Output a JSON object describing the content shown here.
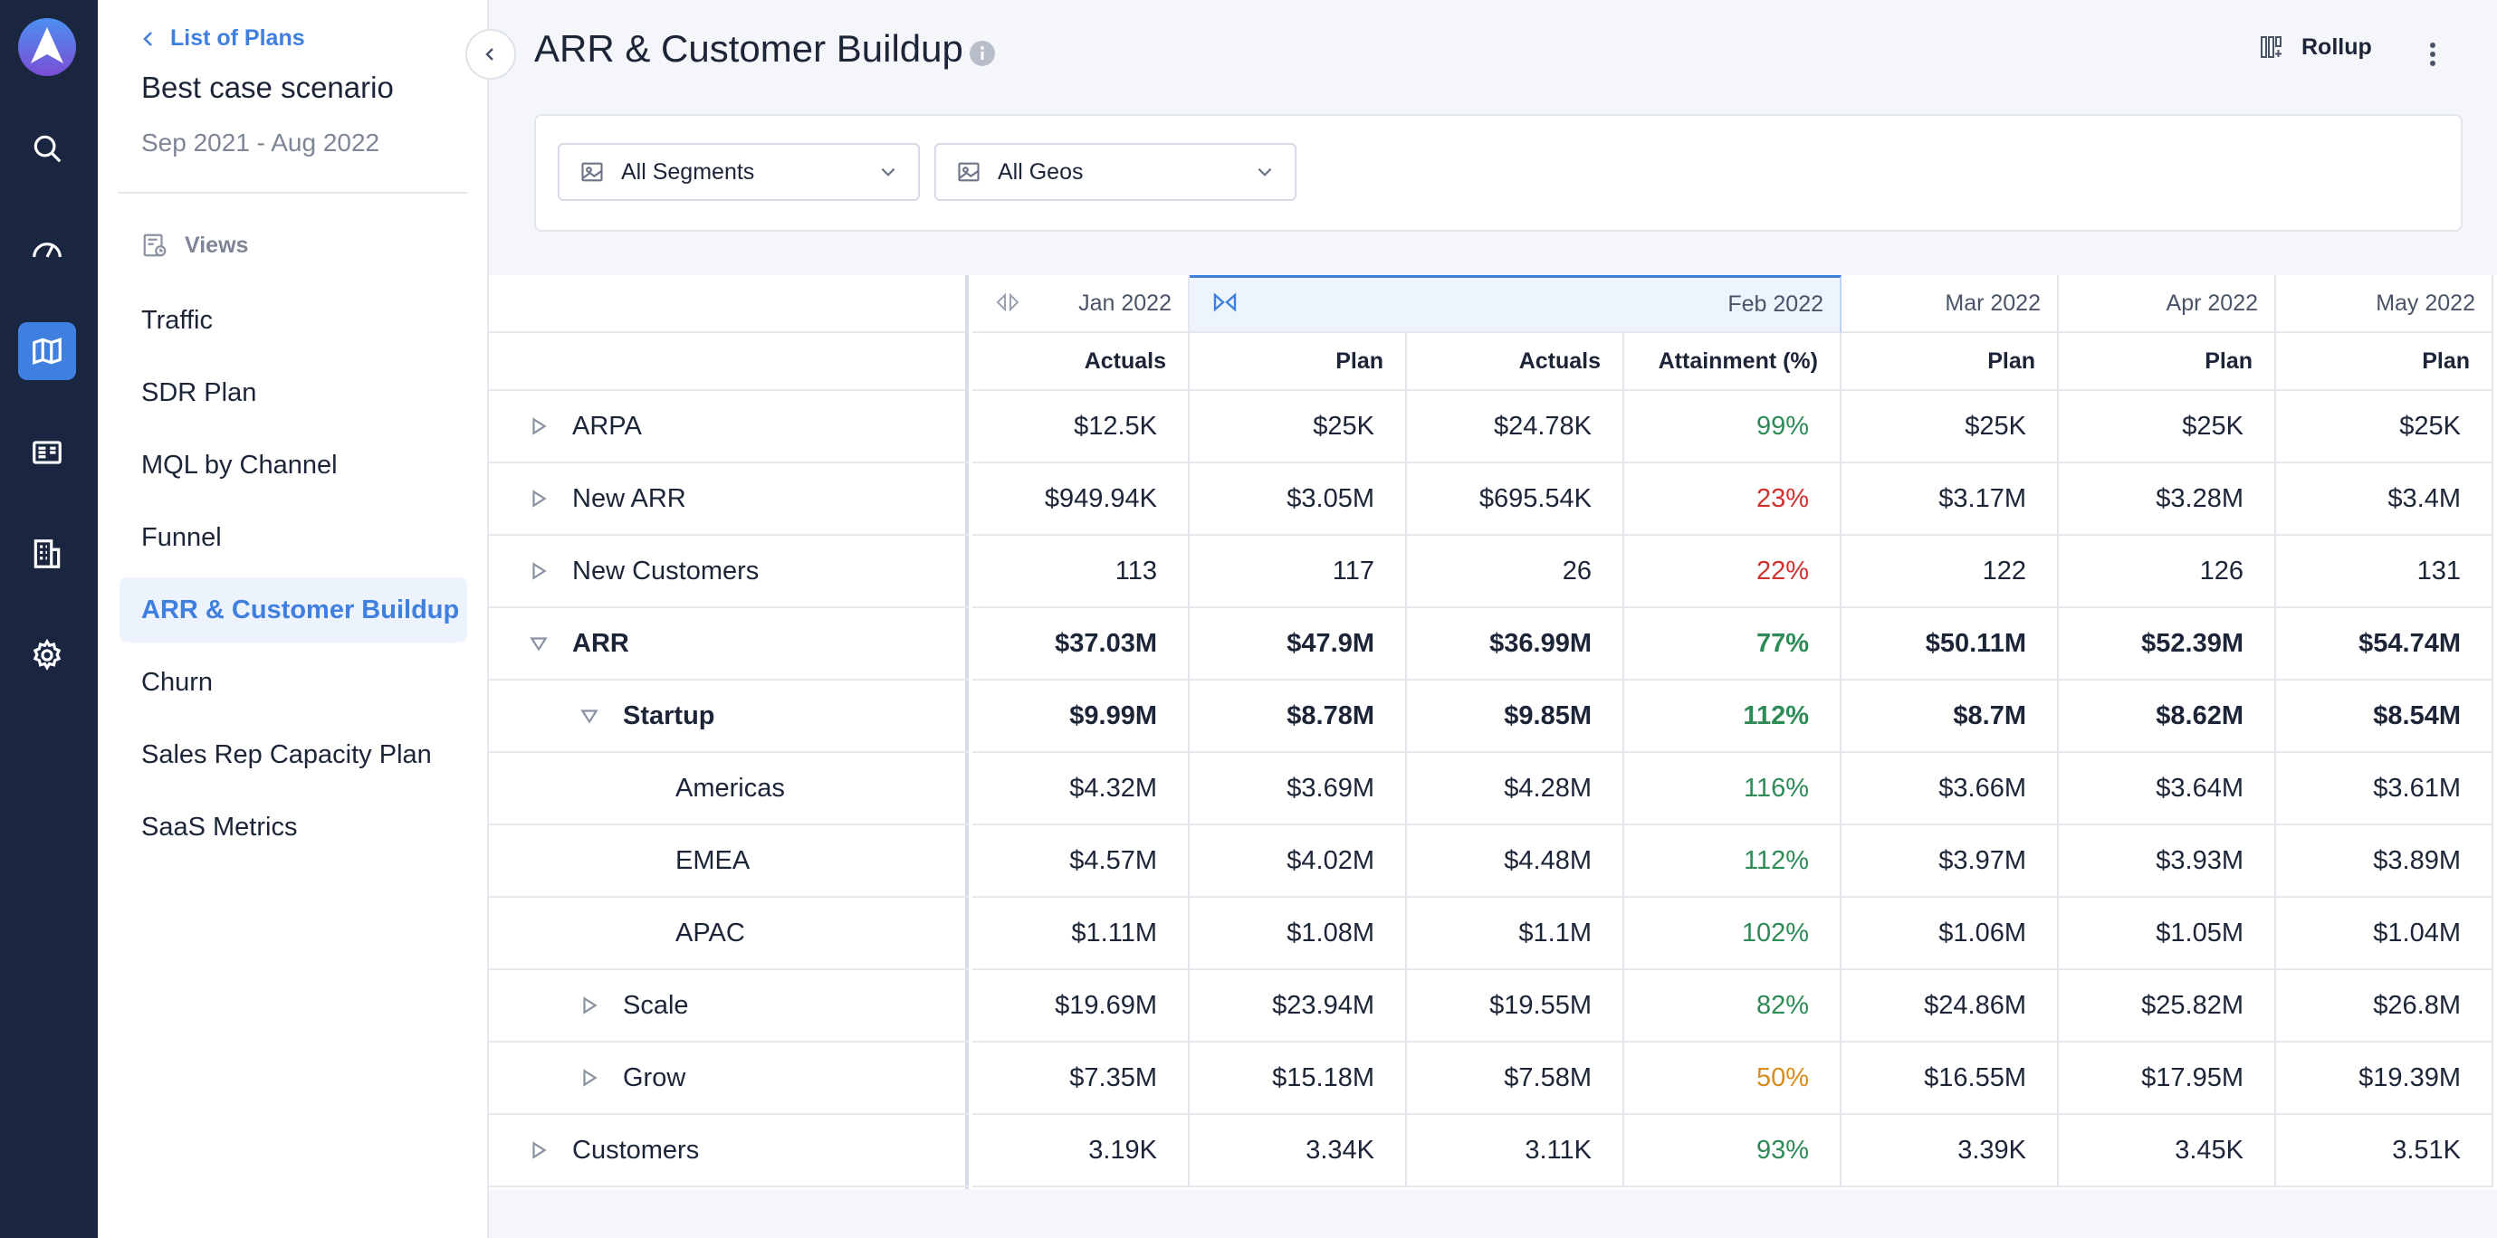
{
  "nav": {
    "back_label": "List of Plans",
    "plan_name": "Best case scenario",
    "plan_range": "Sep 2021 - Aug 2022",
    "views_label": "Views",
    "views": [
      {
        "label": "Traffic"
      },
      {
        "label": "SDR Plan"
      },
      {
        "label": "MQL by Channel"
      },
      {
        "label": "Funnel"
      },
      {
        "label": "ARR & Customer Buildup"
      },
      {
        "label": "Churn"
      },
      {
        "label": "Sales Rep Capacity Plan"
      },
      {
        "label": "SaaS Metrics"
      }
    ],
    "active_view": "ARR & Customer Buildup"
  },
  "header": {
    "title": "ARR & Customer Buildup",
    "rollup_label": "Rollup"
  },
  "filters": {
    "segments": "All Segments",
    "geos": "All Geos"
  },
  "table": {
    "months": [
      "Jan 2022",
      "Feb 2022",
      "Mar 2022",
      "Apr 2022",
      "May 2022"
    ],
    "columns": [
      "Actuals",
      "Plan",
      "Actuals",
      "Attainment (%)",
      "Plan",
      "Plan",
      "Plan"
    ],
    "rows": [
      {
        "label": "ARPA",
        "values": [
          "$12.5K",
          "$25K",
          "$24.78K",
          "99%",
          "$25K",
          "$25K",
          "$25K"
        ]
      },
      {
        "label": "New ARR",
        "values": [
          "$949.94K",
          "$3.05M",
          "$695.54K",
          "23%",
          "$3.17M",
          "$3.28M",
          "$3.4M"
        ]
      },
      {
        "label": "New Customers",
        "values": [
          "113",
          "117",
          "26",
          "22%",
          "122",
          "126",
          "131"
        ]
      },
      {
        "label": "ARR",
        "values": [
          "$37.03M",
          "$47.9M",
          "$36.99M",
          "77%",
          "$50.11M",
          "$52.39M",
          "$54.74M"
        ]
      },
      {
        "label": "Startup",
        "values": [
          "$9.99M",
          "$8.78M",
          "$9.85M",
          "112%",
          "$8.7M",
          "$8.62M",
          "$8.54M"
        ]
      },
      {
        "label": "Americas",
        "values": [
          "$4.32M",
          "$3.69M",
          "$4.28M",
          "116%",
          "$3.66M",
          "$3.64M",
          "$3.61M"
        ]
      },
      {
        "label": "EMEA",
        "values": [
          "$4.57M",
          "$4.02M",
          "$4.48M",
          "112%",
          "$3.97M",
          "$3.93M",
          "$3.89M"
        ]
      },
      {
        "label": "APAC",
        "values": [
          "$1.11M",
          "$1.08M",
          "$1.1M",
          "102%",
          "$1.06M",
          "$1.05M",
          "$1.04M"
        ]
      },
      {
        "label": "Scale",
        "values": [
          "$19.69M",
          "$23.94M",
          "$19.55M",
          "82%",
          "$24.86M",
          "$25.82M",
          "$26.8M"
        ]
      },
      {
        "label": "Grow",
        "values": [
          "$7.35M",
          "$15.18M",
          "$7.58M",
          "50%",
          "$16.55M",
          "$17.95M",
          "$19.39M"
        ]
      },
      {
        "label": "Customers",
        "values": [
          "3.19K",
          "3.34K",
          "3.11K",
          "93%",
          "3.39K",
          "3.45K",
          "3.51K"
        ]
      }
    ]
  },
  "colors": {
    "rail": "#1a2540",
    "accent": "#3f7fe0",
    "good": "#2e8b57",
    "bad": "#d0312d",
    "warn": "#d98c1c"
  },
  "icons": {
    "rail": [
      "logo-icon",
      "search-icon",
      "dashboard-gauge-icon",
      "map-icon",
      "report-icon",
      "building-icon",
      "gear-icon"
    ]
  }
}
